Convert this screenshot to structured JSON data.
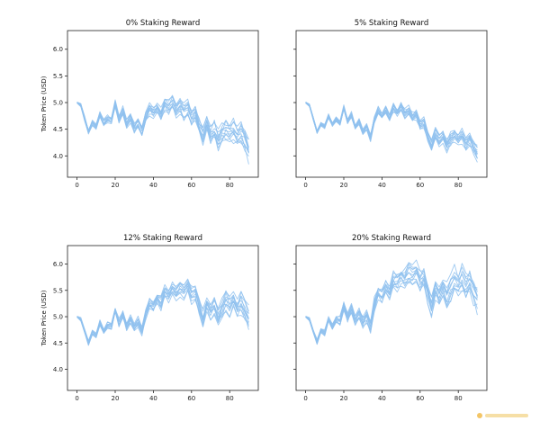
{
  "chart_data": [
    {
      "type": "line",
      "title": "0% Staking Reward",
      "ylabel": "Token Price (USD)",
      "xlim": [
        -5,
        95
      ],
      "ylim": [
        3.6,
        6.35
      ],
      "xticks": [
        0,
        20,
        40,
        60,
        80
      ],
      "xtick_labels": [
        "0",
        "20",
        "40",
        "60",
        "80"
      ],
      "yticks": [
        4.0,
        4.5,
        5.0,
        5.5,
        6.0
      ],
      "ytick_labels": [
        "4.0",
        "4.5",
        "5.0",
        "5.5",
        "6.0"
      ],
      "show_ytick_labels": true,
      "grid": false,
      "legend": "none",
      "line_color": "#8fc1ee",
      "n_paths": 12,
      "x": [
        0,
        2,
        4,
        6,
        8,
        10,
        12,
        14,
        16,
        18,
        20,
        22,
        24,
        26,
        28,
        30,
        32,
        34,
        36,
        38,
        40,
        42,
        44,
        46,
        48,
        50,
        52,
        54,
        56,
        58,
        60,
        62,
        64,
        66,
        68,
        70,
        72,
        74,
        76,
        78,
        80,
        82,
        84,
        86,
        88,
        90
      ],
      "center": [
        5.0,
        4.95,
        4.7,
        4.45,
        4.62,
        4.55,
        4.78,
        4.62,
        4.7,
        4.66,
        4.98,
        4.7,
        4.85,
        4.6,
        4.72,
        4.52,
        4.62,
        4.45,
        4.72,
        4.88,
        4.82,
        4.9,
        4.78,
        4.98,
        4.9,
        5.0,
        4.88,
        4.95,
        4.82,
        4.88,
        4.72,
        4.8,
        4.55,
        4.35,
        4.58,
        4.42,
        4.5,
        4.28,
        4.4,
        4.5,
        4.4,
        4.48,
        4.35,
        4.45,
        4.3,
        4.1
      ],
      "spread_start": 0.05,
      "spread_end": 0.35
    },
    {
      "type": "line",
      "title": "5% Staking Reward",
      "ylabel": "",
      "xlim": [
        -5,
        95
      ],
      "ylim": [
        3.6,
        6.35
      ],
      "xticks": [
        0,
        20,
        40,
        60,
        80
      ],
      "xtick_labels": [
        "0",
        "20",
        "40",
        "60",
        "80"
      ],
      "yticks": [
        4.0,
        4.5,
        5.0,
        5.5,
        6.0
      ],
      "ytick_labels": [
        "4.0",
        "4.5",
        "5.0",
        "5.5",
        "6.0"
      ],
      "show_ytick_labels": false,
      "grid": false,
      "legend": "none",
      "line_color": "#8fc1ee",
      "n_paths": 12,
      "x": [
        0,
        2,
        4,
        6,
        8,
        10,
        12,
        14,
        16,
        18,
        20,
        22,
        24,
        26,
        28,
        30,
        32,
        34,
        36,
        38,
        40,
        42,
        44,
        46,
        48,
        50,
        52,
        54,
        56,
        58,
        60,
        62,
        64,
        66,
        68,
        70,
        72,
        74,
        76,
        78,
        80,
        82,
        84,
        86,
        88,
        90
      ],
      "center": [
        5.0,
        4.95,
        4.7,
        4.45,
        4.6,
        4.55,
        4.75,
        4.6,
        4.68,
        4.62,
        4.9,
        4.65,
        4.78,
        4.55,
        4.65,
        4.45,
        4.55,
        4.35,
        4.68,
        4.85,
        4.75,
        4.85,
        4.72,
        4.9,
        4.82,
        4.92,
        4.8,
        4.85,
        4.72,
        4.78,
        4.58,
        4.62,
        4.38,
        4.2,
        4.42,
        4.3,
        4.38,
        4.2,
        4.32,
        4.4,
        4.3,
        4.38,
        4.25,
        4.32,
        4.18,
        4.05
      ],
      "spread_start": 0.04,
      "spread_end": 0.22
    },
    {
      "type": "line",
      "title": "12% Staking Reward",
      "ylabel": "Token Price (USD)",
      "xlim": [
        -5,
        95
      ],
      "ylim": [
        3.6,
        6.35
      ],
      "xticks": [
        0,
        20,
        40,
        60,
        80
      ],
      "xtick_labels": [
        "0",
        "20",
        "40",
        "60",
        "80"
      ],
      "yticks": [
        4.0,
        4.5,
        5.0,
        5.5,
        6.0
      ],
      "ytick_labels": [
        "4.0",
        "4.5",
        "5.0",
        "5.5",
        "6.0"
      ],
      "show_ytick_labels": true,
      "grid": false,
      "legend": "none",
      "line_color": "#8fc1ee",
      "n_paths": 12,
      "x": [
        0,
        2,
        4,
        6,
        8,
        10,
        12,
        14,
        16,
        18,
        20,
        22,
        24,
        26,
        28,
        30,
        32,
        34,
        36,
        38,
        40,
        42,
        44,
        46,
        48,
        50,
        52,
        54,
        56,
        58,
        60,
        62,
        64,
        66,
        68,
        70,
        72,
        74,
        76,
        78,
        80,
        82,
        84,
        86,
        88,
        90
      ],
      "center": [
        5.0,
        4.95,
        4.72,
        4.5,
        4.7,
        4.65,
        4.88,
        4.72,
        4.85,
        4.82,
        5.12,
        4.88,
        5.05,
        4.82,
        4.95,
        4.8,
        4.9,
        4.72,
        5.05,
        5.25,
        5.2,
        5.35,
        5.25,
        5.48,
        5.42,
        5.55,
        5.45,
        5.55,
        5.48,
        5.6,
        5.42,
        5.48,
        5.18,
        4.95,
        5.25,
        5.1,
        5.22,
        5.0,
        5.15,
        5.3,
        5.2,
        5.3,
        5.15,
        5.25,
        5.1,
        4.95
      ],
      "spread_start": 0.04,
      "spread_end": 0.35
    },
    {
      "type": "line",
      "title": "20% Staking Reward",
      "ylabel": "",
      "xlim": [
        -5,
        95
      ],
      "ylim": [
        3.6,
        6.35
      ],
      "xticks": [
        0,
        20,
        40,
        60,
        80
      ],
      "xtick_labels": [
        "0",
        "20",
        "40",
        "60",
        "80"
      ],
      "yticks": [
        4.0,
        4.5,
        5.0,
        5.5,
        6.0
      ],
      "ytick_labels": [
        "4.0",
        "4.5",
        "5.0",
        "5.5",
        "6.0"
      ],
      "show_ytick_labels": false,
      "grid": false,
      "legend": "none",
      "line_color": "#8fc1ee",
      "n_paths": 12,
      "x": [
        0,
        2,
        4,
        6,
        8,
        10,
        12,
        14,
        16,
        18,
        20,
        22,
        24,
        26,
        28,
        30,
        32,
        34,
        36,
        38,
        40,
        42,
        44,
        46,
        48,
        50,
        52,
        54,
        56,
        58,
        60,
        62,
        64,
        66,
        68,
        70,
        72,
        74,
        76,
        78,
        80,
        82,
        84,
        86,
        88,
        90
      ],
      "center": [
        5.0,
        4.95,
        4.72,
        4.52,
        4.75,
        4.7,
        4.95,
        4.8,
        4.95,
        4.92,
        5.22,
        4.98,
        5.15,
        4.92,
        5.05,
        4.9,
        5.02,
        4.82,
        5.22,
        5.45,
        5.4,
        5.55,
        5.45,
        5.68,
        5.65,
        5.78,
        5.72,
        5.82,
        5.78,
        5.88,
        5.7,
        5.75,
        5.45,
        5.2,
        5.55,
        5.4,
        5.6,
        5.38,
        5.55,
        5.7,
        5.6,
        5.7,
        5.55,
        5.65,
        5.5,
        5.35
      ],
      "spread_start": 0.04,
      "spread_end": 0.45
    }
  ],
  "watermark_icon": "brand-logo-icon"
}
